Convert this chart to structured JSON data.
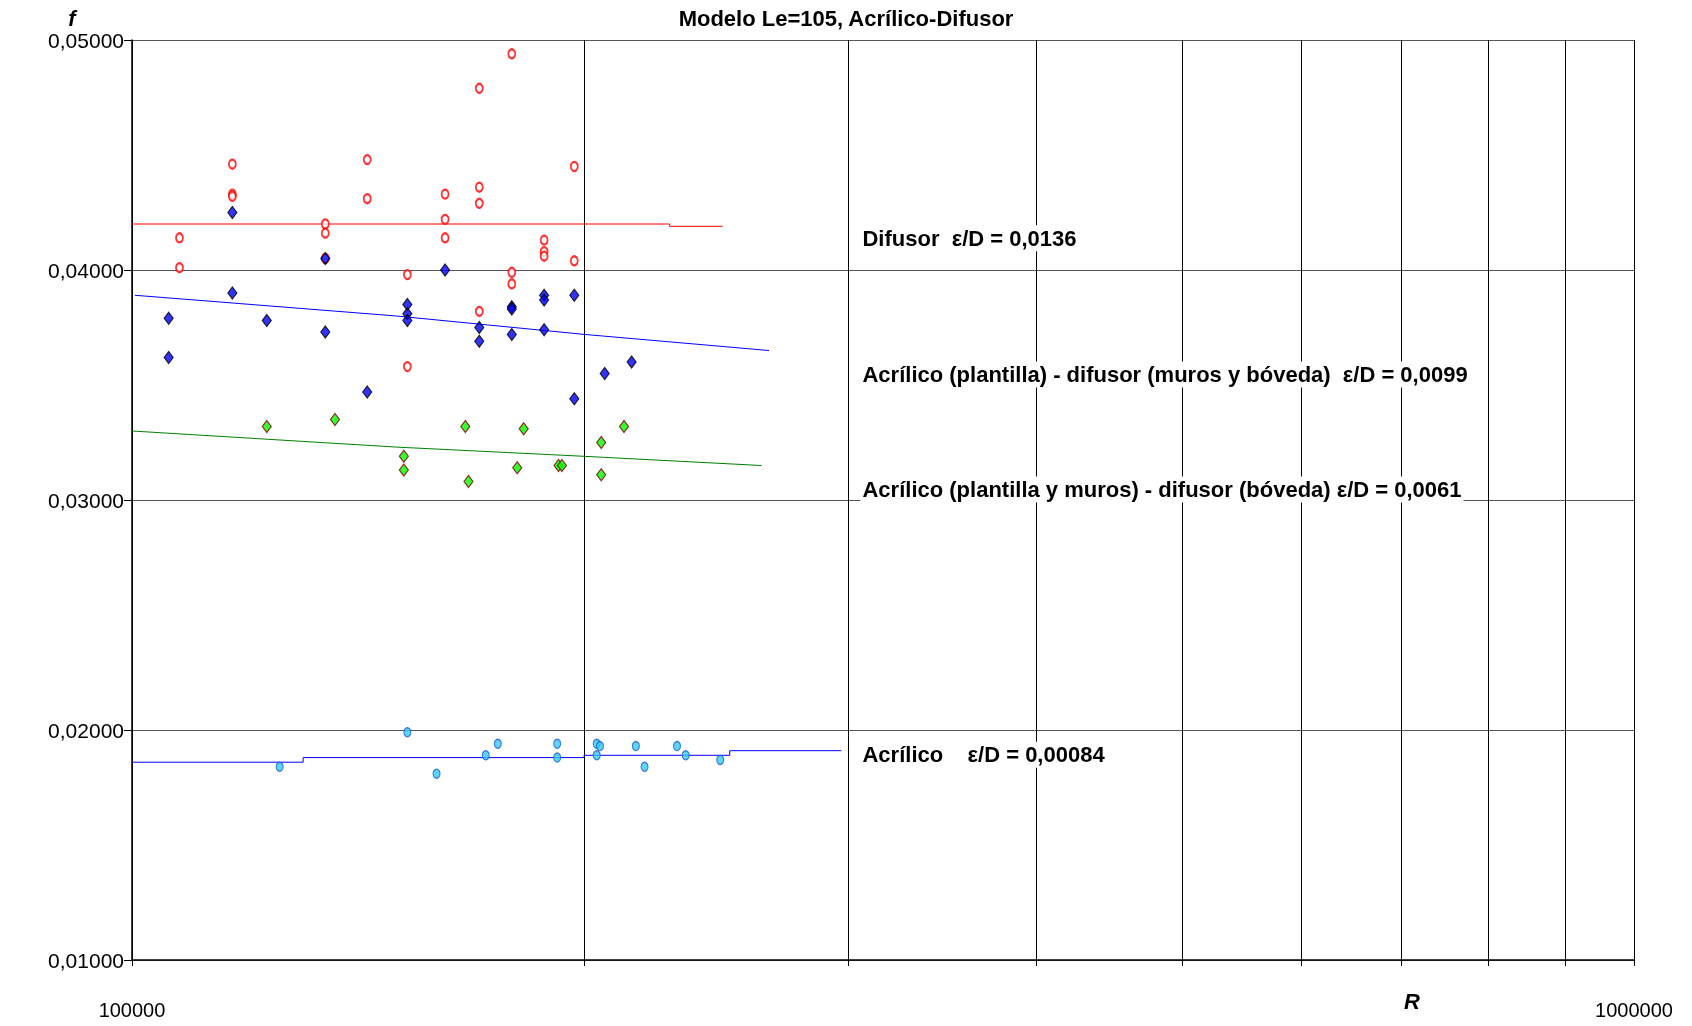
{
  "chart_data": {
    "type": "scatter",
    "title": "Modelo Le=105, Acrílico-Difusor",
    "xlabel": "R",
    "ylabel": "f",
    "log": "x",
    "grid": true,
    "xlim": [
      100000,
      1000000
    ],
    "xticks": [
      100000,
      {
        "value": 200000,
        "label": null
      },
      {
        "value": 300000,
        "label": null
      },
      {
        "value": 400000,
        "label": null
      },
      {
        "value": 500000,
        "label": null
      },
      {
        "value": 600000,
        "label": null
      },
      {
        "value": 700000,
        "label": null
      },
      {
        "value": 800000,
        "label": null
      },
      {
        "value": 900000,
        "label": null
      },
      1000000
    ],
    "ylim": [
      0.01,
      0.05
    ],
    "yticks": [
      {
        "value": 0.01,
        "label": "0,01000"
      },
      {
        "value": 0.02,
        "label": "0,02000"
      },
      {
        "value": 0.03,
        "label": "0,03000"
      },
      {
        "value": 0.04,
        "label": "0,04000"
      },
      {
        "value": 0.05,
        "label": "0,05000"
      }
    ],
    "annotations": [
      "Difusor  ε/D = 0,0136",
      "Acrílico (plantilla) - difusor (muros y bóveda)  ε/D = 0,0099",
      "Acrílico (plantilla y muros) - difusor (bóveda) ε/D = 0,0061",
      "Acrílico    ε/D = 0,00084"
    ],
    "series": [
      {
        "type": "line",
        "marker": "none",
        "line_style": "solid",
        "color": "#ff0000",
        "x": [
          100000,
          228000,
          228000,
          247100
        ],
        "values": [
          0.042,
          0.042,
          0.0419,
          0.0419
        ]
      },
      {
        "type": "line",
        "marker": "none",
        "line_style": "solid",
        "color": "#0000ff",
        "x": [
          100500,
          150000,
          200000,
          265400
        ],
        "values": [
          0.0389,
          0.038,
          0.0372,
          0.0365
        ]
      },
      {
        "type": "line",
        "marker": "none",
        "line_style": "solid",
        "color": "#008000",
        "x": [
          100000,
          150000,
          200000,
          262300
        ],
        "values": [
          0.033,
          0.0323,
          0.0319,
          0.0315
        ]
      },
      {
        "type": "line",
        "marker": "none",
        "line_style": "solid",
        "color": "#0000ff",
        "x": [
          100000,
          130000,
          130000,
          200000,
          200000,
          250000,
          250000,
          296500
        ],
        "values": [
          0.0186,
          0.0186,
          0.0188,
          0.0188,
          0.0189,
          0.0189,
          0.0191,
          0.0191
        ]
      },
      {
        "marker": "circle",
        "color": "#ff0000",
        "x": [
          107550,
          107550,
          116630,
          116630,
          116630,
          134490,
          134490,
          134490,
          143420,
          143420,
          152520,
          152520,
          161600,
          161600,
          161600,
          170300,
          170300,
          170300,
          170300,
          179000,
          179000,
          179000,
          188100,
          188100,
          188100,
          197000,
          197000
        ],
        "values": [
          0.0414,
          0.0401,
          0.0446,
          0.0433,
          0.0432,
          0.042,
          0.0416,
          0.0405,
          0.0448,
          0.0431,
          0.0398,
          0.0358,
          0.0433,
          0.0422,
          0.0414,
          0.0479,
          0.0436,
          0.0429,
          0.0382,
          0.0494,
          0.0399,
          0.0394,
          0.0413,
          0.0408,
          0.0406,
          0.0445,
          0.0404
        ]
      },
      {
        "marker": "diamond",
        "color": "#0000ff",
        "x": [
          105780,
          105780,
          116630,
          116630,
          122950,
          134490,
          134490,
          143420,
          152520,
          152520,
          152520,
          161600,
          170300,
          170300,
          179000,
          179000,
          179000,
          188100,
          188100,
          188100,
          197000,
          197000,
          206400,
          215100
        ],
        "values": [
          0.0379,
          0.0362,
          0.0425,
          0.039,
          0.0378,
          0.0405,
          0.0373,
          0.0347,
          0.0385,
          0.0381,
          0.0378,
          0.04,
          0.0375,
          0.0369,
          0.0384,
          0.0383,
          0.0372,
          0.0389,
          0.0387,
          0.0374,
          0.0389,
          0.0344,
          0.0355,
          0.036
        ]
      },
      {
        "marker": "diamond",
        "color": "#00ff00",
        "x": [
          122950,
          136500,
          151700,
          151700,
          166700,
          167500,
          180500,
          182300,
          192300,
          193300,
          205300,
          205300,
          212600
        ],
        "values": [
          0.0332,
          0.0335,
          0.0313,
          0.0319,
          0.0332,
          0.0308,
          0.0314,
          0.0331,
          0.0315,
          0.0315,
          0.0325,
          0.0311,
          0.0332
        ]
      },
      {
        "marker": "circle",
        "color": "#33ccff",
        "x": [
          125400,
          152520,
          159500,
          172000,
          175200,
          191900,
          191900,
          203900,
          204900,
          203900,
          216500,
          219400,
          230600,
          233700,
          246400
        ],
        "values": [
          0.0184,
          0.0199,
          0.0181,
          0.0189,
          0.0194,
          0.0194,
          0.0188,
          0.0194,
          0.0193,
          0.0189,
          0.0193,
          0.0184,
          0.0193,
          0.0189,
          0.0187
        ]
      }
    ]
  }
}
